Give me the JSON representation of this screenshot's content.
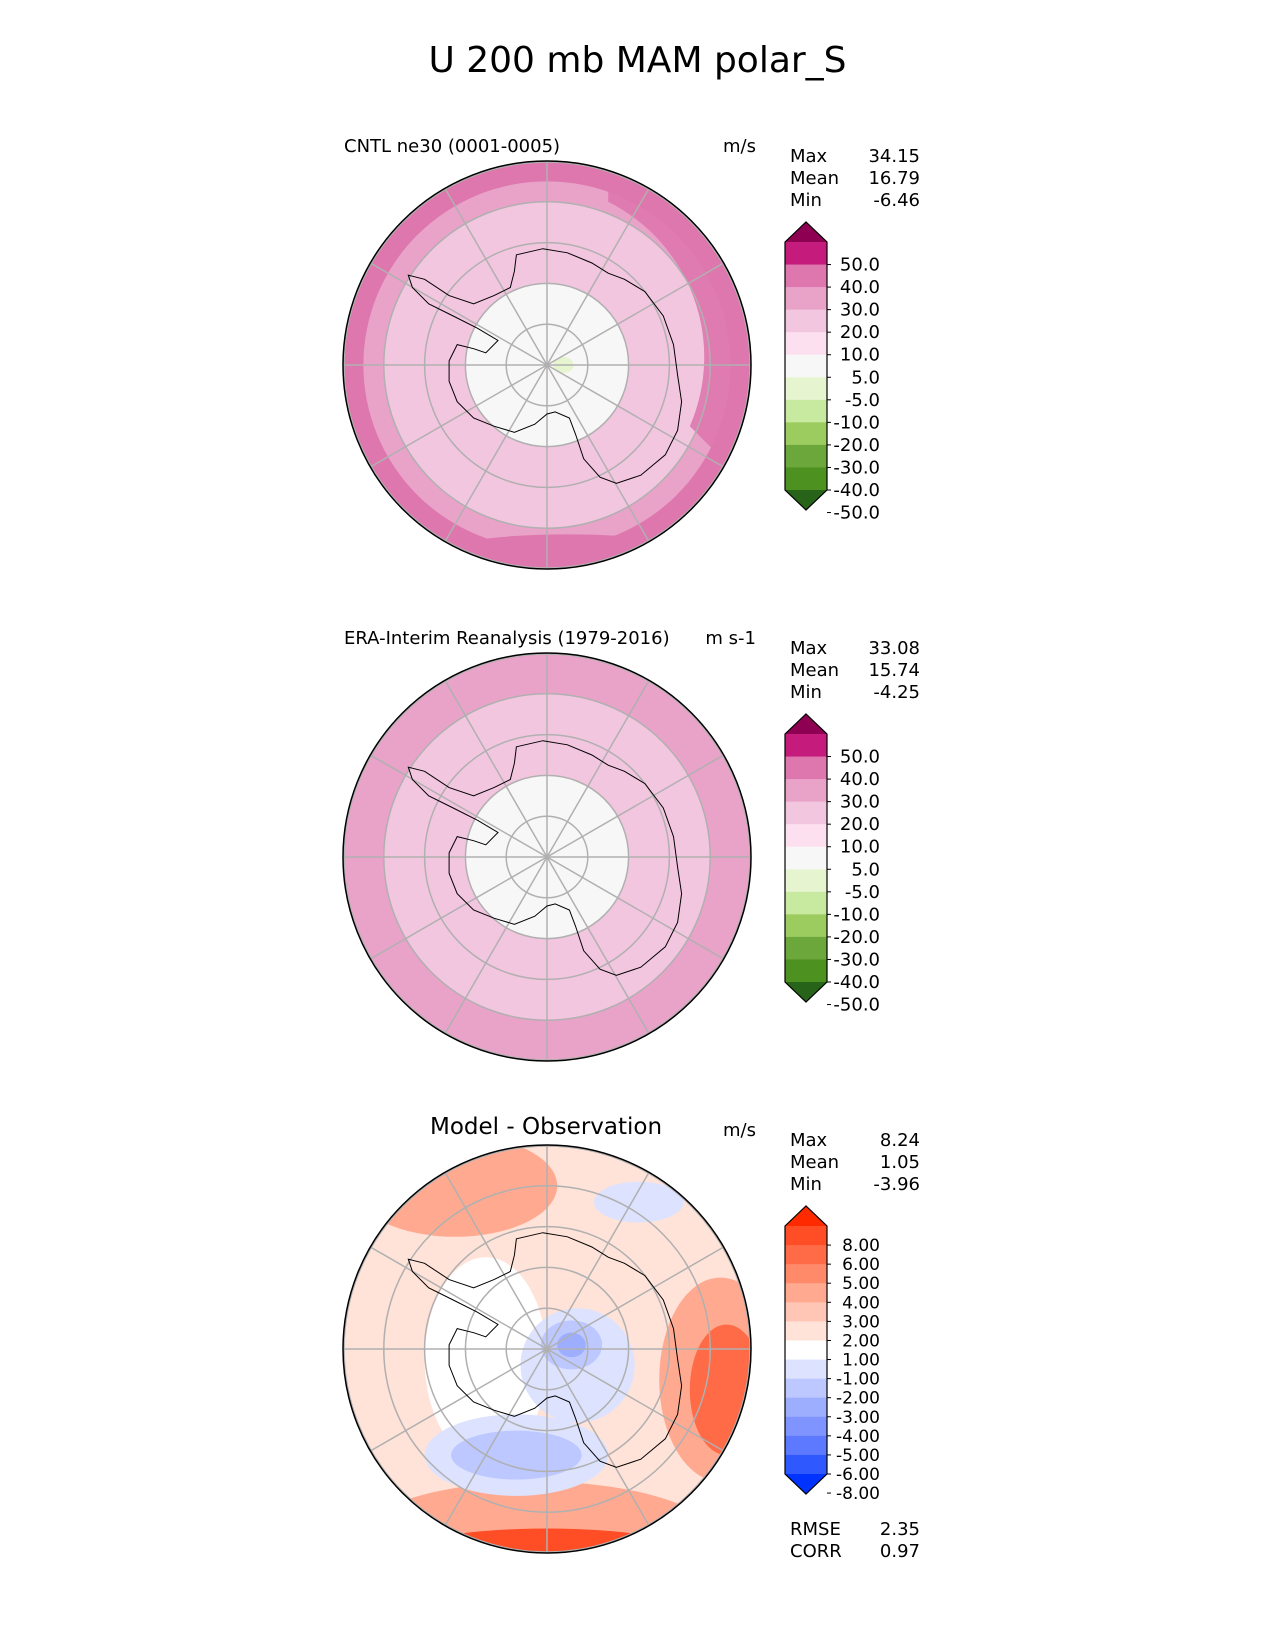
{
  "title": "U 200 mb MAM polar_S",
  "panels": [
    {
      "title": "CNTL ne30 (0001-0005)",
      "units": "m/s",
      "stats": [
        [
          "Max",
          "34.15"
        ],
        [
          "Mean",
          "16.79"
        ],
        [
          "Min",
          "-6.46"
        ]
      ],
      "colorbar": "abs"
    },
    {
      "title": "ERA-Interim Reanalysis (1979-2016)",
      "units": "m s-1",
      "stats": [
        [
          "Max",
          "33.08"
        ],
        [
          "Mean",
          "15.74"
        ],
        [
          "Min",
          "-4.25"
        ]
      ],
      "colorbar": "abs"
    },
    {
      "title": "Model - Observation",
      "units": "m/s",
      "stats": [
        [
          "Max",
          "8.24"
        ],
        [
          "Mean",
          "1.05"
        ],
        [
          "Min",
          "-3.96"
        ]
      ],
      "colorbar": "diff",
      "bottom_stats": [
        [
          "RMSE",
          "2.35"
        ],
        [
          "CORR",
          "0.97"
        ]
      ]
    }
  ],
  "colorbars": {
    "abs": {
      "labels": [
        "50.0",
        "40.0",
        "30.0",
        "20.0",
        "10.0",
        "5.0",
        "-5.0",
        "-10.0",
        "-20.0",
        "-30.0",
        "-40.0",
        "-50.0"
      ],
      "colors": [
        "#8e0152",
        "#c51b7d",
        "#de77ae",
        "#e9a3c9",
        "#f3c6e0",
        "#fde0ef",
        "#f7f7f7",
        "#e6f5d0",
        "#c7e9a0",
        "#9ccc5f",
        "#6ba73a",
        "#4d9221",
        "#276419"
      ]
    },
    "diff": {
      "labels": [
        "8.00",
        "6.00",
        "5.00",
        "4.00",
        "3.00",
        "2.00",
        "1.00",
        "-1.00",
        "-2.00",
        "-3.00",
        "-4.00",
        "-5.00",
        "-6.00",
        "-8.00"
      ],
      "colors": [
        "#ff2a00",
        "#ff4d26",
        "#ff6a47",
        "#ff8a6a",
        "#ffaa90",
        "#ffc6b5",
        "#ffe2d8",
        "#ffffff",
        "#dde3ff",
        "#bcc8ff",
        "#9daeff",
        "#7f94ff",
        "#5c79ff",
        "#3058ff",
        "#0033ff"
      ]
    }
  },
  "chart_data": [
    {
      "type": "heatmap",
      "title": "CNTL ne30 (0001-0005)",
      "units": "m/s",
      "projection": "south polar stereographic",
      "levels": [
        -50,
        -40,
        -30,
        -20,
        -10,
        -5,
        5,
        10,
        20,
        30,
        40,
        50
      ],
      "field_summary": {
        "max": 34.15,
        "mean": 16.79,
        "min": -6.46
      },
      "bands": [
        {
          "lat_range": [
            -90,
            -70
          ],
          "approx_value": 3
        },
        {
          "lat_range": [
            -70,
            -60
          ],
          "approx_value": 12
        },
        {
          "lat_range": [
            -60,
            -50
          ],
          "approx_value": 18
        },
        {
          "lat_range": [
            -50,
            -45
          ],
          "approx_value": 26
        },
        {
          "lat_range": [
            -45,
            -40
          ],
          "approx_value": 31
        }
      ]
    },
    {
      "type": "heatmap",
      "title": "ERA-Interim Reanalysis (1979-2016)",
      "units": "m s-1",
      "projection": "south polar stereographic",
      "levels": [
        -50,
        -40,
        -30,
        -20,
        -10,
        -5,
        5,
        10,
        20,
        30,
        40,
        50
      ],
      "field_summary": {
        "max": 33.08,
        "mean": 15.74,
        "min": -4.25
      },
      "bands": [
        {
          "lat_range": [
            -90,
            -70
          ],
          "approx_value": 2
        },
        {
          "lat_range": [
            -70,
            -60
          ],
          "approx_value": 11
        },
        {
          "lat_range": [
            -60,
            -50
          ],
          "approx_value": 17
        },
        {
          "lat_range": [
            -50,
            -40
          ],
          "approx_value": 24
        }
      ]
    },
    {
      "type": "heatmap",
      "title": "Model - Observation",
      "units": "m/s",
      "projection": "south polar stereographic",
      "levels": [
        -8,
        -6,
        -5,
        -4,
        -3,
        -2,
        -1,
        1,
        2,
        3,
        4,
        5,
        6,
        8
      ],
      "field_summary": {
        "max": 8.24,
        "mean": 1.05,
        "min": -3.96,
        "rmse": 2.35,
        "corr": 0.97
      }
    }
  ]
}
